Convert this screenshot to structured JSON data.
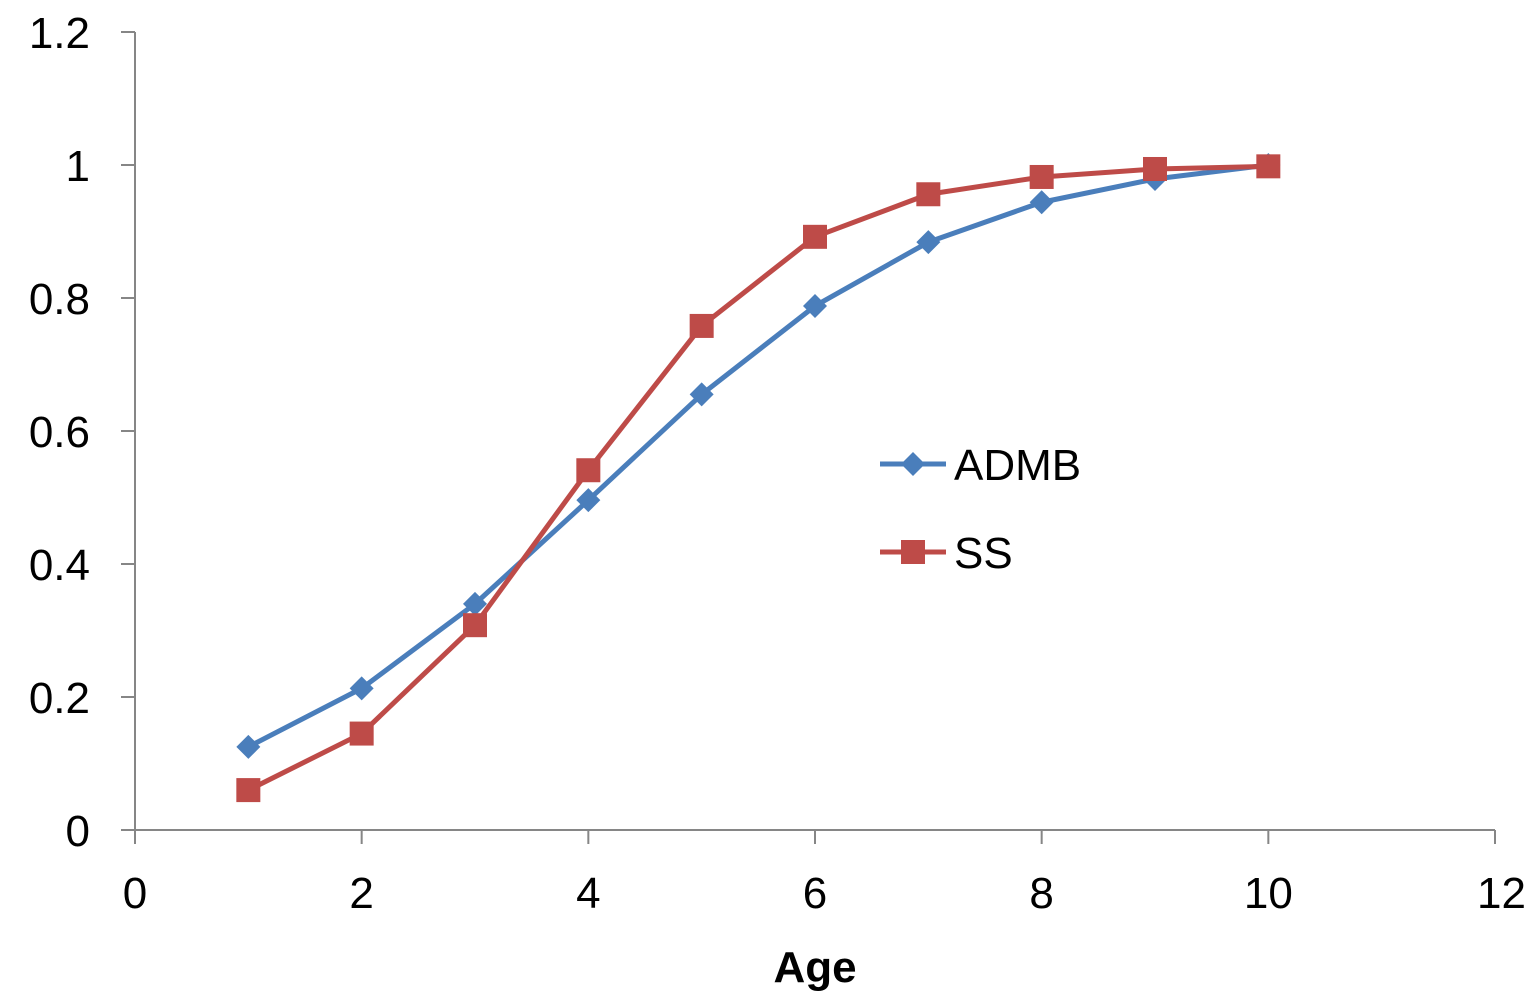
{
  "chart_data": {
    "type": "line",
    "title": "",
    "xlabel": "Age",
    "ylabel": "",
    "xlim": [
      0,
      12
    ],
    "ylim": [
      0,
      1.2
    ],
    "x_ticks": [
      "0",
      "2",
      "4",
      "6",
      "8",
      "10",
      "12"
    ],
    "y_ticks": [
      "0",
      "0.2",
      "0.4",
      "0.6",
      "0.8",
      "1",
      "1.2"
    ],
    "grid": false,
    "legend_position": "center-right",
    "x": [
      1,
      2,
      3,
      4,
      5,
      6,
      7,
      8,
      9,
      10
    ],
    "series": [
      {
        "name": "ADMB",
        "color": "#4a7ebb",
        "marker": "diamond",
        "values": [
          0.125,
          0.213,
          0.34,
          0.496,
          0.655,
          0.788,
          0.884,
          0.944,
          0.979,
          1.0
        ]
      },
      {
        "name": "SS",
        "color": "#be4b48",
        "marker": "square",
        "values": [
          0.06,
          0.145,
          0.308,
          0.541,
          0.758,
          0.892,
          0.956,
          0.982,
          0.994,
          0.998
        ]
      }
    ]
  }
}
